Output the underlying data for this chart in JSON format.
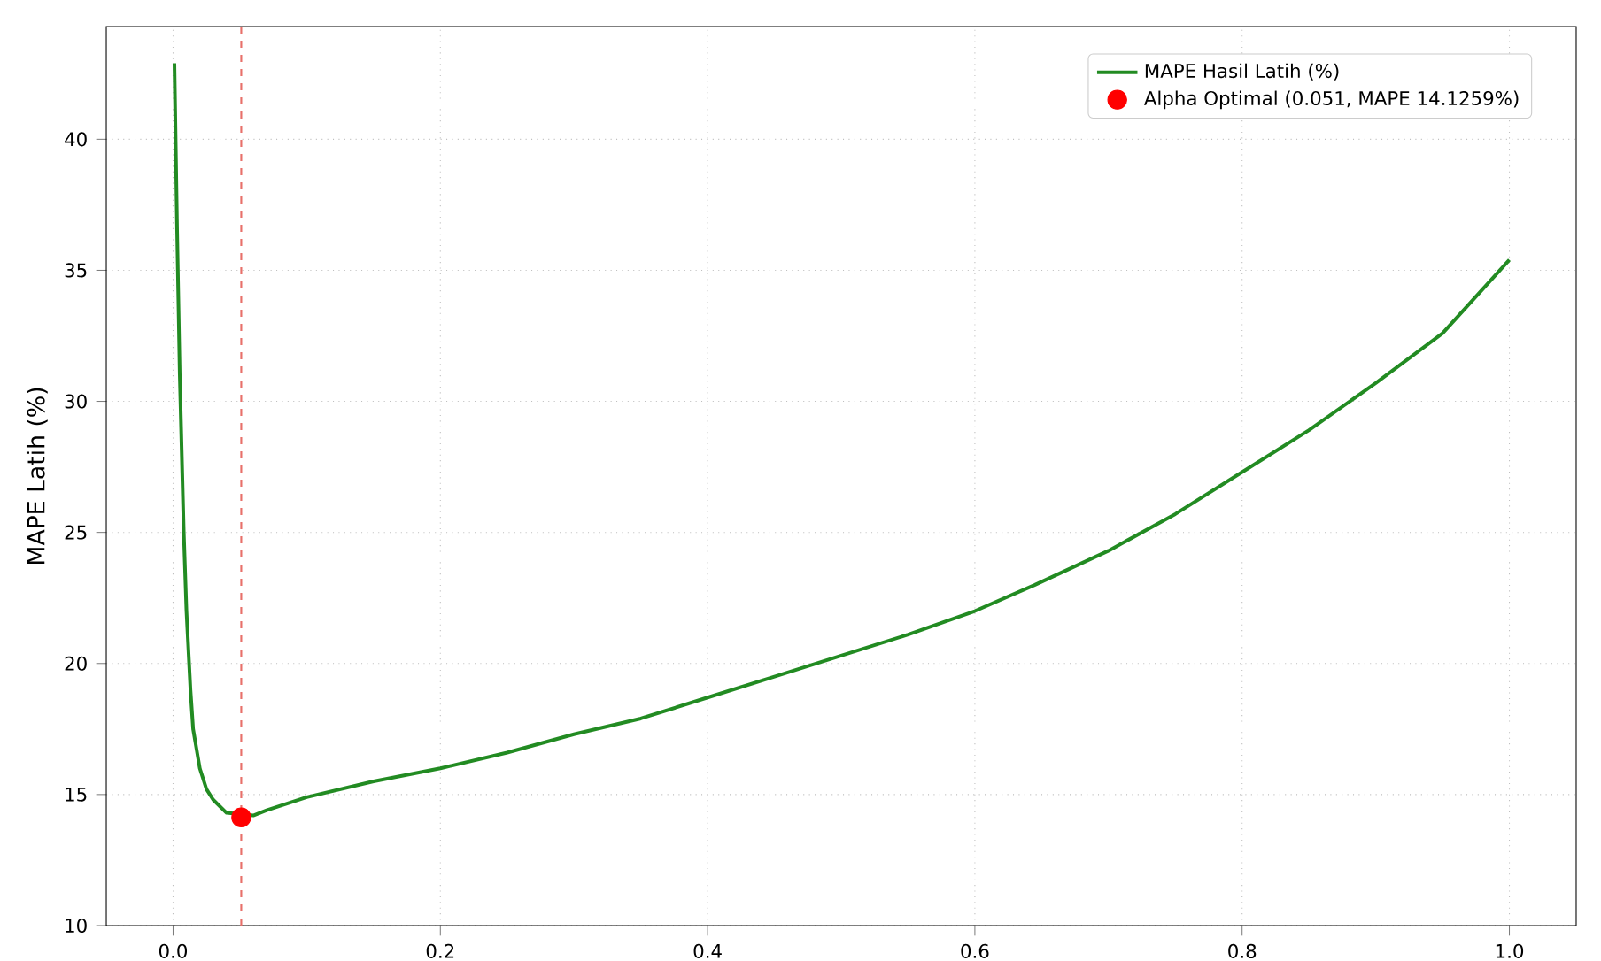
{
  "chart_data": {
    "type": "line",
    "ylabel": "MAPE Latih (%)",
    "xlim": [
      -0.05,
      1.05
    ],
    "ylim": [
      10,
      44.3
    ],
    "xticks": [
      {
        "value": 0,
        "label": "0.0"
      },
      0.2,
      0.4,
      0.6,
      0.8,
      {
        "value": 1,
        "label": "1.0"
      }
    ],
    "yticks": [
      10,
      15,
      20,
      25,
      30,
      35,
      40
    ],
    "grid": true,
    "legend": "top right",
    "series": [
      {
        "name": "MAPE Hasil Latih (%)",
        "color": "#228b22",
        "x": [
          0.001,
          0.003,
          0.005,
          0.008,
          0.01,
          0.013,
          0.015,
          0.02,
          0.025,
          0.03,
          0.04,
          0.06,
          0.07,
          0.1,
          0.15,
          0.2,
          0.25,
          0.3,
          0.35,
          0.4,
          0.45,
          0.5,
          0.55,
          0.6,
          0.645,
          0.7,
          0.75,
          0.8,
          0.85,
          0.9,
          0.95,
          1.0
        ],
        "values": [
          42.9,
          36.5,
          31.0,
          25.0,
          22.0,
          19.0,
          17.5,
          16.0,
          15.2,
          14.8,
          14.3,
          14.2,
          14.4,
          14.9,
          15.5,
          16.0,
          16.6,
          17.3,
          17.9,
          18.7,
          19.5,
          20.3,
          21.1,
          22.0,
          23.0,
          24.3,
          25.7,
          27.3,
          28.9,
          30.7,
          32.6,
          35.4
        ]
      },
      {
        "name": "Alpha Optimal (0.051, MAPE 14.1259%)",
        "type": "scatter",
        "color": "#ff0000",
        "x": [
          0.051
        ],
        "values": [
          14.1259
        ]
      }
    ],
    "ref_lines": [
      {
        "axis": "x",
        "value": 0.051,
        "color": "#e8706a",
        "line_style": "dashed"
      }
    ]
  }
}
